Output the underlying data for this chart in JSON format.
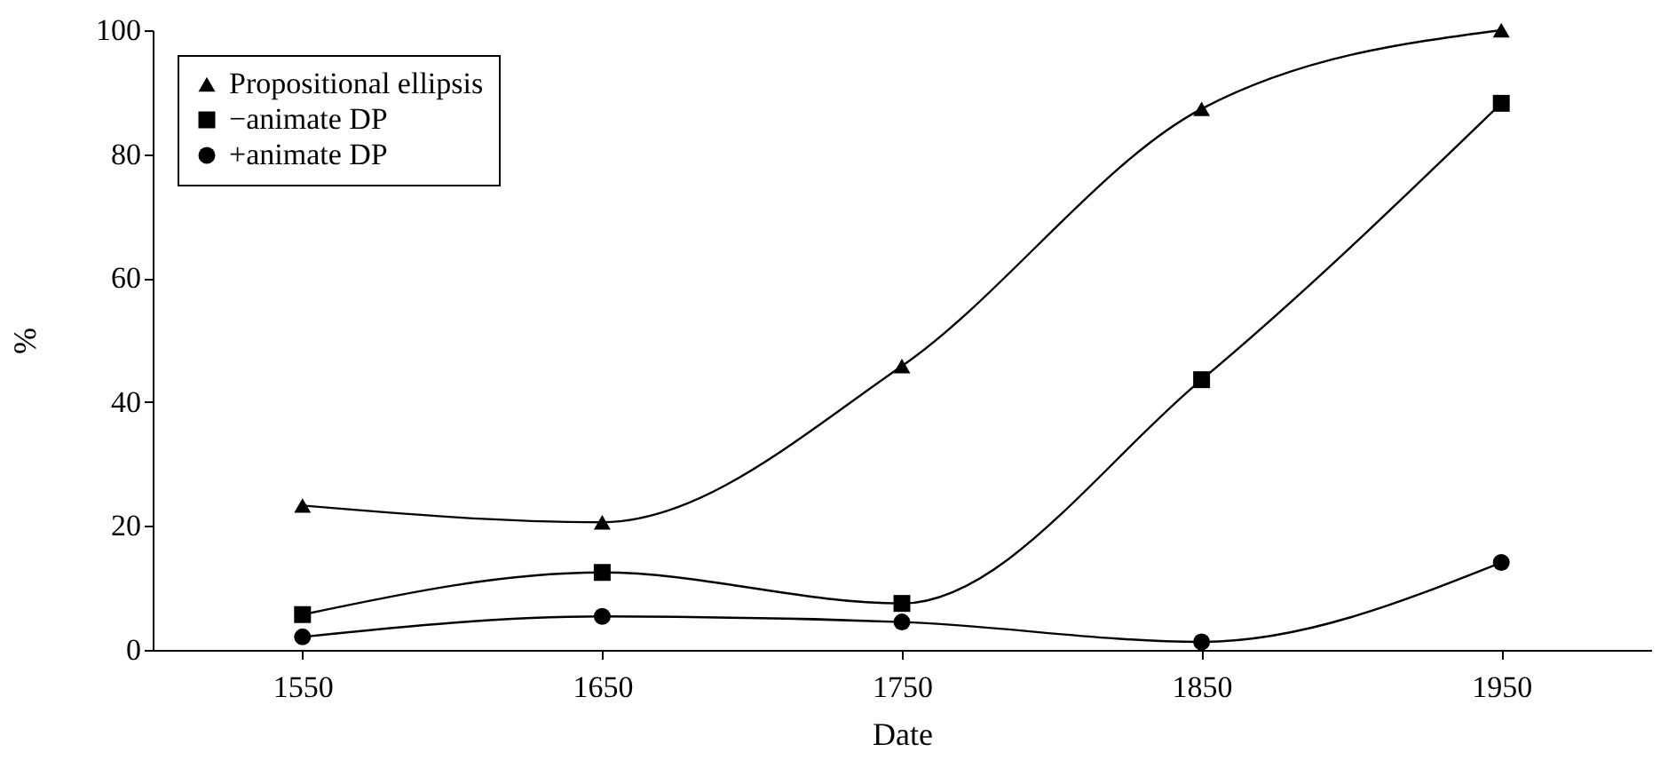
{
  "chart_data": {
    "type": "line",
    "xlabel": "Date",
    "ylabel": "%",
    "x": [
      1550,
      1650,
      1750,
      1850,
      1950
    ],
    "xlim": [
      1500,
      2000
    ],
    "xticks": [
      1550,
      1650,
      1750,
      1850,
      1950
    ],
    "ylim": [
      0,
      100
    ],
    "yticks": [
      0,
      20,
      40,
      60,
      80,
      100
    ],
    "grid": false,
    "legend": "top left",
    "line_style": "solid",
    "series": [
      {
        "name": "Propositional ellipsis",
        "color": "#000000",
        "marker": "triangle",
        "values": [
          23.3,
          20.6,
          45.8,
          87.3,
          100
        ]
      },
      {
        "name": "−animate DP",
        "color": "#000000",
        "marker": "square",
        "values": [
          5.7,
          12.5,
          7.5,
          43.6,
          88.2
        ]
      },
      {
        "name": "+animate DP",
        "color": "#000000",
        "marker": "circle",
        "values": [
          2.1,
          5.4,
          4.5,
          1.3,
          14.1
        ]
      }
    ]
  }
}
